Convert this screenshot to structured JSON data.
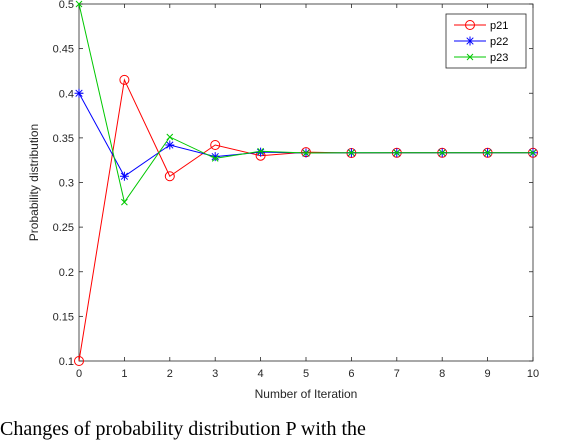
{
  "chart_data": {
    "type": "line",
    "xlabel": "Number of Iteration",
    "ylabel": "Probability distribution",
    "xlim": [
      0,
      10
    ],
    "ylim": [
      0.1,
      0.5
    ],
    "x": [
      0,
      1,
      2,
      3,
      4,
      5,
      6,
      7,
      8,
      9,
      10
    ],
    "xticks": [
      "0",
      "1",
      "2",
      "3",
      "4",
      "5",
      "6",
      "7",
      "8",
      "9",
      "10"
    ],
    "yticks": [
      "0.1",
      "0.15",
      "0.2",
      "0.25",
      "0.3",
      "0.35",
      "0.4",
      "0.45",
      "0.5"
    ],
    "grid": false,
    "legend_position": "top-right",
    "series": [
      {
        "name": "p21",
        "color": "#ff0000",
        "marker": "circle",
        "values": [
          0.1,
          0.415,
          0.307,
          0.342,
          0.33,
          0.334,
          0.333,
          0.3333,
          0.3333,
          0.3333,
          0.3333
        ]
      },
      {
        "name": "p22",
        "color": "#0000ff",
        "marker": "asterisk",
        "values": [
          0.4,
          0.307,
          0.342,
          0.329,
          0.334,
          0.333,
          0.3333,
          0.3333,
          0.3333,
          0.3333,
          0.3333
        ]
      },
      {
        "name": "p23",
        "color": "#00c800",
        "marker": "x",
        "values": [
          0.5,
          0.278,
          0.351,
          0.327,
          0.335,
          0.333,
          0.3333,
          0.3333,
          0.3333,
          0.3333,
          0.3333
        ]
      }
    ]
  },
  "caption": "Changes of probability distribution P with the"
}
